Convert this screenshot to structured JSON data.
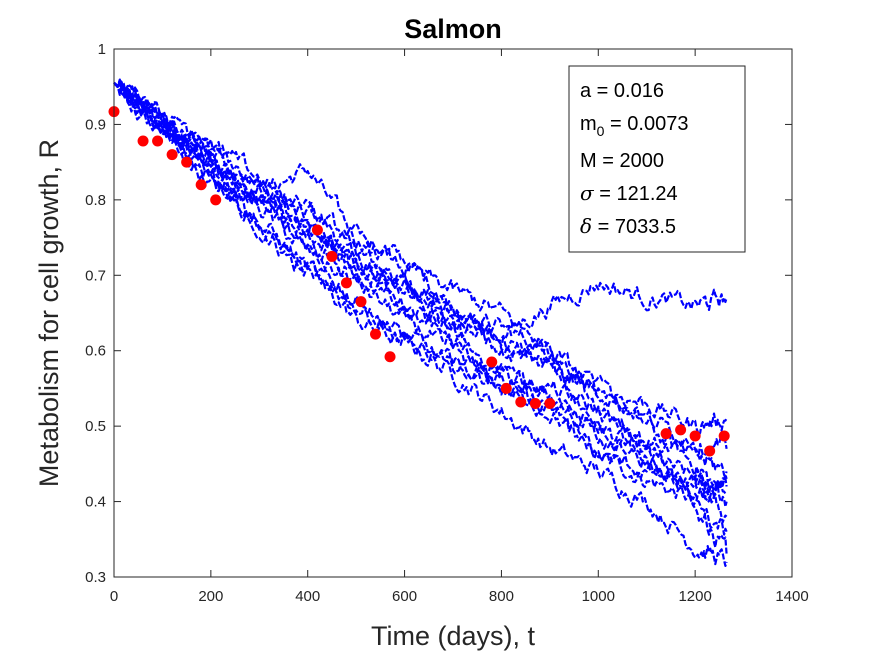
{
  "chart_data": {
    "type": "line",
    "title": "Salmon",
    "xlabel": "Time (days), t",
    "ylabel": "Metabolism for cell growth, R",
    "xlim": [
      0,
      1400
    ],
    "ylim": [
      0.3,
      1
    ],
    "xticks": [
      0,
      200,
      400,
      600,
      800,
      1000,
      1200,
      1400
    ],
    "yticks": [
      0.3,
      0.4,
      0.5,
      0.6,
      0.7,
      0.8,
      0.9,
      1
    ],
    "xtick_labels": [
      "0",
      "200",
      "400",
      "600",
      "800",
      "1000",
      "1200",
      "1400"
    ],
    "ytick_labels": [
      "0.3",
      "0.4",
      "0.5",
      "0.6",
      "0.7",
      "0.8",
      "0.9",
      "1"
    ],
    "grid": false,
    "colors": {
      "simulations": "#0000ff",
      "observed": "#ff0000"
    },
    "parameters": {
      "a": {
        "symbol": "a",
        "value": "0.016"
      },
      "m0": {
        "symbol": "m",
        "subscript": "0",
        "value": "0.0073"
      },
      "M": {
        "symbol": "M",
        "value": "2000"
      },
      "sigma": {
        "symbol": "σ",
        "value": "121.24"
      },
      "delta": {
        "symbol": "δ",
        "value": "7033.5"
      }
    },
    "observed": {
      "x": [
        0,
        60,
        90,
        120,
        150,
        180,
        210,
        420,
        450,
        480,
        510,
        540,
        570,
        780,
        810,
        840,
        870,
        900,
        1140,
        1170,
        1200,
        1230,
        1260
      ],
      "y": [
        0.917,
        0.878,
        0.878,
        0.86,
        0.85,
        0.82,
        0.8,
        0.76,
        0.725,
        0.69,
        0.665,
        0.622,
        0.592,
        0.585,
        0.55,
        0.532,
        0.53,
        0.53,
        0.49,
        0.495,
        0.487,
        0.467,
        0.487
      ]
    },
    "simulation_series": [
      {
        "x": [
          0,
          100,
          200,
          300,
          400,
          500,
          600,
          700,
          800,
          900,
          1000,
          1100,
          1200,
          1265
        ],
        "y": [
          0.955,
          0.9,
          0.84,
          0.8,
          0.79,
          0.73,
          0.69,
          0.63,
          0.55,
          0.52,
          0.46,
          0.43,
          0.4,
          0.33
        ]
      },
      {
        "x": [
          0,
          100,
          200,
          300,
          400,
          500,
          600,
          700,
          800,
          900,
          1000,
          1100,
          1200,
          1265
        ],
        "y": [
          0.955,
          0.91,
          0.86,
          0.81,
          0.84,
          0.75,
          0.72,
          0.66,
          0.61,
          0.58,
          0.5,
          0.46,
          0.43,
          0.42
        ]
      },
      {
        "x": [
          0,
          100,
          200,
          300,
          400,
          500,
          600,
          700,
          800,
          900,
          1000,
          1100,
          1200,
          1265
        ],
        "y": [
          0.955,
          0.9,
          0.86,
          0.8,
          0.76,
          0.73,
          0.69,
          0.65,
          0.63,
          0.6,
          0.55,
          0.5,
          0.45,
          0.4
        ]
      },
      {
        "x": [
          0,
          100,
          200,
          300,
          400,
          500,
          600,
          700,
          800,
          900,
          1000,
          1100,
          1200,
          1265
        ],
        "y": [
          0.955,
          0.89,
          0.82,
          0.77,
          0.71,
          0.64,
          0.61,
          0.57,
          0.52,
          0.47,
          0.44,
          0.4,
          0.34,
          0.32
        ]
      },
      {
        "x": [
          0,
          100,
          200,
          300,
          400,
          500,
          600,
          700,
          800,
          900,
          1000,
          1100,
          1200,
          1265
        ],
        "y": [
          0.955,
          0.9,
          0.85,
          0.8,
          0.76,
          0.72,
          0.68,
          0.64,
          0.62,
          0.66,
          0.69,
          0.67,
          0.66,
          0.67
        ]
      },
      {
        "x": [
          0,
          100,
          200,
          300,
          400,
          500,
          600,
          700,
          800,
          900,
          1000,
          1100,
          1200,
          1265
        ],
        "y": [
          0.955,
          0.91,
          0.87,
          0.83,
          0.77,
          0.71,
          0.66,
          0.63,
          0.61,
          0.6,
          0.55,
          0.53,
          0.5,
          0.51
        ]
      },
      {
        "x": [
          0,
          100,
          200,
          300,
          400,
          500,
          600,
          700,
          800,
          900,
          1000,
          1100,
          1200,
          1265
        ],
        "y": [
          0.955,
          0.9,
          0.84,
          0.77,
          0.71,
          0.66,
          0.62,
          0.58,
          0.56,
          0.55,
          0.52,
          0.47,
          0.42,
          0.43
        ]
      },
      {
        "x": [
          0,
          100,
          200,
          300,
          400,
          500,
          600,
          700,
          800,
          900,
          1000,
          1100,
          1200,
          1265
        ],
        "y": [
          0.955,
          0.88,
          0.83,
          0.79,
          0.73,
          0.69,
          0.64,
          0.6,
          0.55,
          0.52,
          0.46,
          0.44,
          0.42,
          0.38
        ]
      },
      {
        "x": [
          0,
          100,
          200,
          300,
          400,
          500,
          600,
          700,
          800,
          900,
          1000,
          1100,
          1200,
          1265
        ],
        "y": [
          0.955,
          0.91,
          0.87,
          0.82,
          0.78,
          0.75,
          0.71,
          0.68,
          0.65,
          0.6,
          0.53,
          0.48,
          0.46,
          0.44
        ]
      },
      {
        "x": [
          0,
          100,
          200,
          300,
          400,
          500,
          600,
          700,
          800,
          900,
          1000,
          1100,
          1200,
          1265
        ],
        "y": [
          0.955,
          0.9,
          0.84,
          0.76,
          0.7,
          0.67,
          0.62,
          0.58,
          0.57,
          0.54,
          0.5,
          0.46,
          0.39,
          0.36
        ]
      },
      {
        "x": [
          0,
          100,
          200,
          300,
          400,
          500,
          600,
          700,
          800,
          900,
          1000,
          1100,
          1200,
          1265
        ],
        "y": [
          0.955,
          0.89,
          0.85,
          0.8,
          0.74,
          0.7,
          0.66,
          0.61,
          0.57,
          0.53,
          0.49,
          0.45,
          0.41,
          0.41
        ]
      },
      {
        "x": [
          0,
          100,
          200,
          300,
          400,
          500,
          600,
          700,
          800,
          900,
          1000,
          1100,
          1200,
          1265
        ],
        "y": [
          0.955,
          0.9,
          0.86,
          0.82,
          0.75,
          0.72,
          0.68,
          0.66,
          0.6,
          0.58,
          0.55,
          0.51,
          0.48,
          0.47
        ]
      }
    ]
  }
}
